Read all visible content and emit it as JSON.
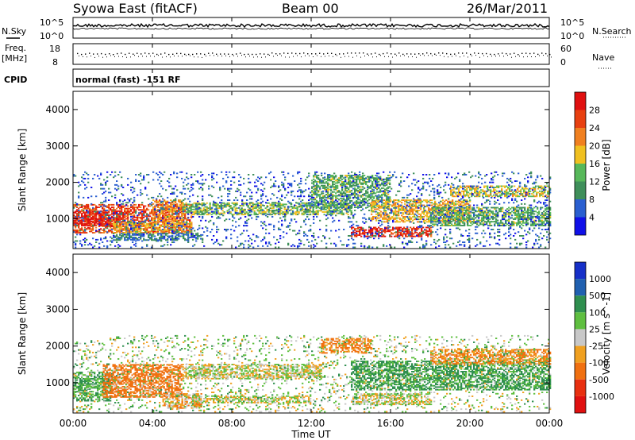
{
  "header": {
    "station": "Syowa East (fitACF)",
    "beam": "Beam 00",
    "date": "26/Mar/2011"
  },
  "nsky_panel": {
    "left_label": "N.Sky",
    "right_label": "N.Search",
    "y_top": "10^5",
    "y_bottom": "10^0",
    "right_y_top": "10^5",
    "right_y_bottom": "10^0"
  },
  "freq_panel": {
    "left_label_line1": "Freq.",
    "left_label_line2": "[MHz]",
    "right_label": "Nave",
    "y_top": "18",
    "y_bottom": "8",
    "right_y_top": "60",
    "right_y_bottom": "0"
  },
  "cpid_panel": {
    "label": "CPID",
    "text": "normal (fast) -151 RF"
  },
  "power_colorbar": {
    "label": "Power [dB]",
    "ticks": [
      "4",
      "8",
      "12",
      "16",
      "20",
      "24",
      "28"
    ],
    "colors": [
      "#1010e8",
      "#2a5fd0",
      "#3f8f5a",
      "#57b85a",
      "#f0c020",
      "#f08020",
      "#e84010",
      "#e01010"
    ]
  },
  "velocity_colorbar": {
    "label": "Velocity [m s^-1]",
    "ticks": [
      "1000",
      "500",
      "100",
      "25",
      "-25",
      "-100",
      "-500",
      "-1000"
    ],
    "colors": [
      "#1630c8",
      "#2060b0",
      "#2f8f4f",
      "#5fbf40",
      "#c8c8c8",
      "#f0a020",
      "#f07010",
      "#e83010",
      "#e01010"
    ]
  },
  "chart_data": {
    "type": "heatmap",
    "x_axis": {
      "label": "Time UT",
      "tick_labels": [
        "00:00",
        "04:00",
        "08:00",
        "12:00",
        "16:00",
        "20:00",
        "00:00"
      ],
      "range_hours": [
        0,
        24
      ]
    },
    "y_axis": {
      "label": "Slant Range [km]",
      "tick_labels": [
        "1000",
        "2000",
        "3000",
        "4000"
      ],
      "range": [
        180,
        4500
      ]
    },
    "panels": [
      {
        "name": "Power",
        "unit": "dB",
        "range": [
          0,
          30
        ],
        "regions": [
          {
            "t0": 0.0,
            "t1": 6.0,
            "r0": 600,
            "r1": 1400,
            "value": 24
          },
          {
            "t0": 0.0,
            "t1": 2.5,
            "r0": 800,
            "r1": 1200,
            "value": 28
          },
          {
            "t0": 2.0,
            "t1": 6.0,
            "r0": 600,
            "r1": 900,
            "value": 18
          },
          {
            "t0": 4.0,
            "t1": 5.5,
            "r0": 900,
            "r1": 1500,
            "value": 20
          },
          {
            "t0": 5.5,
            "t1": 14.0,
            "r0": 1100,
            "r1": 1450,
            "value": 14
          },
          {
            "t0": 2.0,
            "t1": 6.5,
            "r0": 400,
            "r1": 600,
            "value": 8
          },
          {
            "t0": 12.0,
            "t1": 16.0,
            "r0": 1300,
            "r1": 2200,
            "value": 12
          },
          {
            "t0": 14.0,
            "t1": 18.0,
            "r0": 500,
            "r1": 750,
            "value": 26
          },
          {
            "t0": 15.0,
            "t1": 20.0,
            "r0": 900,
            "r1": 1500,
            "value": 18
          },
          {
            "t0": 19.0,
            "t1": 24.0,
            "r0": 1600,
            "r1": 1900,
            "value": 16
          },
          {
            "t0": 18.0,
            "t1": 24.0,
            "r0": 800,
            "r1": 1300,
            "value": 12
          },
          {
            "t0": 0.0,
            "t1": 24.0,
            "r0": 200,
            "r1": 2300,
            "value": 6
          }
        ]
      },
      {
        "name": "Velocity",
        "unit": "m s^-1",
        "range": [
          -1000,
          1000
        ],
        "regions": [
          {
            "t0": 0.0,
            "t1": 2.0,
            "r0": 500,
            "r1": 1300,
            "value": 120
          },
          {
            "t0": 1.5,
            "t1": 5.5,
            "r0": 600,
            "r1": 1500,
            "value": -200
          },
          {
            "t0": 4.5,
            "t1": 6.5,
            "r0": 300,
            "r1": 700,
            "value": -60
          },
          {
            "t0": 5.5,
            "t1": 12.5,
            "r0": 1100,
            "r1": 1500,
            "value": 0
          },
          {
            "t0": 6.0,
            "t1": 12.0,
            "r0": 450,
            "r1": 650,
            "value": 0
          },
          {
            "t0": 12.5,
            "t1": 15.0,
            "r0": 1800,
            "r1": 2200,
            "value": -150
          },
          {
            "t0": 14.0,
            "t1": 24.0,
            "r0": 800,
            "r1": 1600,
            "value": 150
          },
          {
            "t0": 18.0,
            "t1": 24.0,
            "r0": 1500,
            "r1": 1900,
            "value": -120
          },
          {
            "t0": 14.0,
            "t1": 18.0,
            "r0": 400,
            "r1": 700,
            "value": 0
          },
          {
            "t0": 0.0,
            "t1": 24.0,
            "r0": 200,
            "r1": 2300,
            "value": 30
          }
        ]
      }
    ]
  }
}
